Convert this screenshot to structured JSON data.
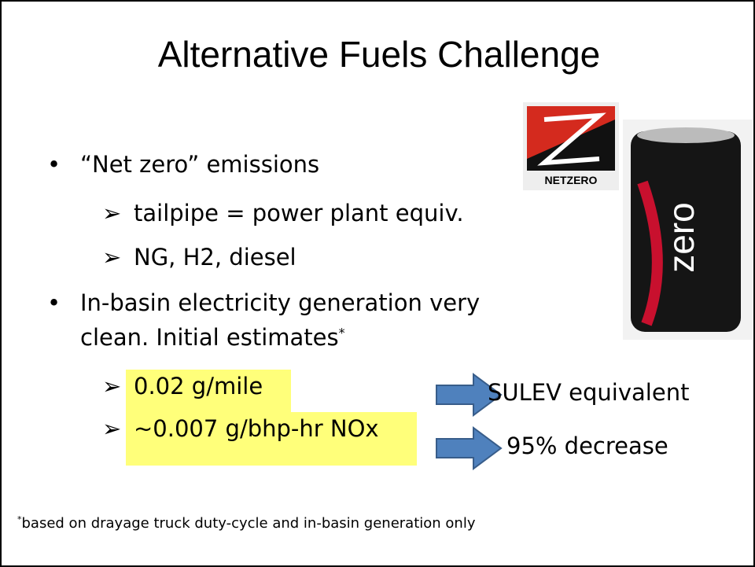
{
  "slide": {
    "title": "Alternative Fuels Challenge",
    "bullets": [
      {
        "text": "“Net zero” emissions",
        "sub": [
          "tailpipe = power plant equiv.",
          "NG, H2, diesel"
        ]
      },
      {
        "text_lines": [
          "In-basin electricity generation very",
          "clean. Initial estimates"
        ],
        "marker": "*",
        "sub": [
          "0.02 g/mile",
          "~0.007 g/bhp-hr NOx"
        ]
      }
    ],
    "arrows": [
      "SULEV equivalent",
      "95% decrease"
    ],
    "logo": "NETZERO",
    "can_text": "zero",
    "footnote": {
      "marker": "*",
      "text": "based on drayage truck duty-cycle and in-basin generation only"
    }
  }
}
